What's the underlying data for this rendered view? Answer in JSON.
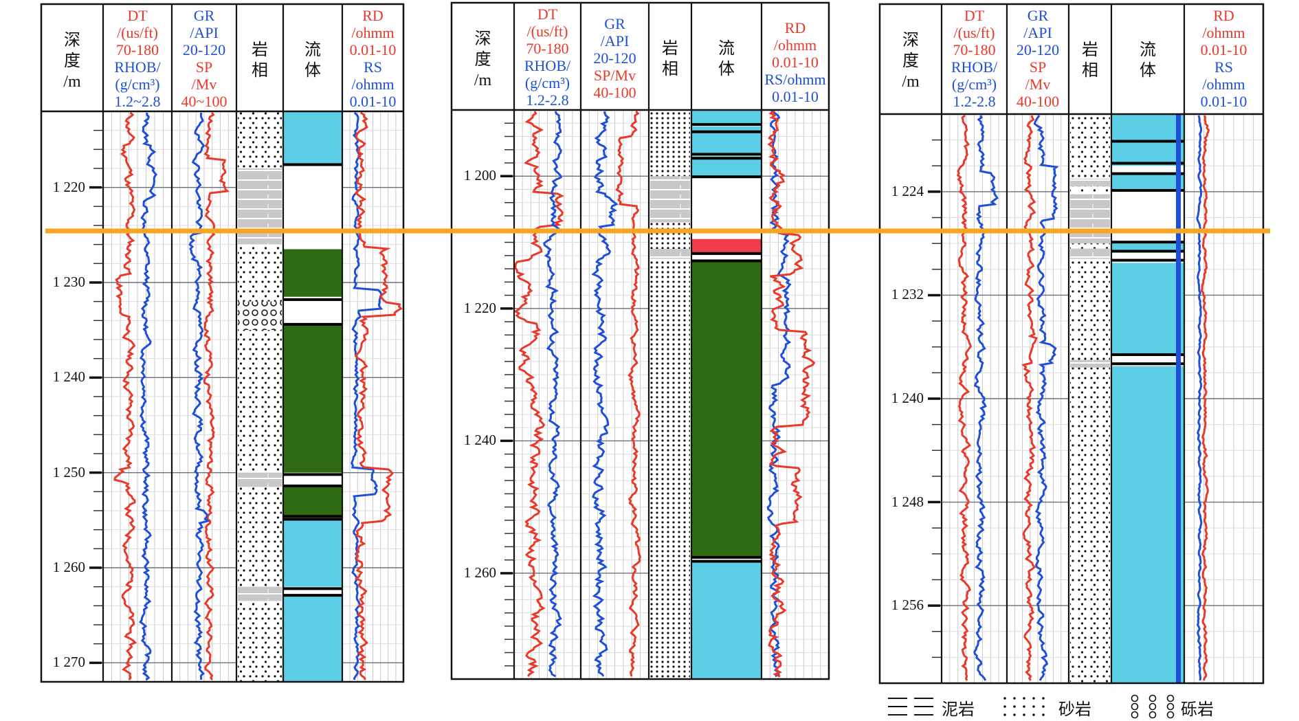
{
  "colors": {
    "red": "#e8392b",
    "blue": "#1f4fd6",
    "water": "#5ccfe6",
    "oil": "#2e6b14",
    "gas": "#f03a4a",
    "mud": "#c8c8c8",
    "marker": "#f5a623"
  },
  "panels": [
    {
      "id": "well-1",
      "columns": {
        "depth": [
          "深",
          "度",
          "/m"
        ],
        "dt": {
          "red": [
            "DT",
            "/(us/ft)",
            "70-180"
          ],
          "blue": [
            "RHOB/",
            "(g/cm³)",
            "1.2~2.8"
          ]
        },
        "gr": {
          "blue": [
            "GR",
            "/API",
            "20-120"
          ],
          "red": [
            "SP",
            "/Mv",
            "40~100"
          ]
        },
        "litho": [
          "岩",
          "相"
        ],
        "fluid": [
          "流",
          "体"
        ],
        "rd": {
          "red": [
            "RD",
            "/ohmm",
            "0.01-10"
          ],
          "blue": [
            "RS",
            "/ohmm",
            "0.01-10"
          ]
        }
      },
      "depth_range": [
        1212,
        1272
      ],
      "depth_labels": [
        "1 220",
        "1 230",
        "1 240",
        "1 250",
        "1 260",
        "1 270"
      ],
      "depth_ticks": [
        1220,
        1230,
        1240,
        1250,
        1260,
        1270
      ]
    },
    {
      "id": "well-2",
      "columns": {
        "depth": [
          "深",
          "度",
          "/m"
        ],
        "dt": {
          "red": [
            "DT",
            "/(us/ft)",
            "70-180"
          ],
          "blue": [
            "RHOB/",
            "(g/cm³)",
            "1.2-2.8"
          ]
        },
        "gr": {
          "blue": [
            "GR",
            "/API",
            "20-120"
          ],
          "red": [
            "SP/Mv",
            "40-100"
          ]
        },
        "litho": [
          "岩",
          "相"
        ],
        "fluid": [
          "流",
          "体"
        ],
        "rd": {
          "red": [
            "RD",
            "/ohmm",
            "0.01-10"
          ],
          "blue": [
            "RS/ohmm",
            "0.01-10"
          ]
        }
      },
      "depth_range": [
        1190,
        1276
      ],
      "depth_labels": [
        "1 200",
        "1 220",
        "1 240",
        "1 260"
      ],
      "depth_ticks": [
        1200,
        1220,
        1240,
        1260
      ]
    },
    {
      "id": "well-3",
      "columns": {
        "depth": [
          "深",
          "度",
          "/m"
        ],
        "dt": {
          "red": [
            "DT",
            "/(us/ft)",
            "70-180"
          ],
          "blue": [
            "RHOB/",
            "(g/cm³)",
            "1.2-2.8"
          ]
        },
        "gr": {
          "blue": [
            "GR",
            "/API",
            "20-120"
          ],
          "red": [
            "SP",
            "/Mv",
            "40-100"
          ]
        },
        "litho": [
          "岩",
          "相"
        ],
        "fluid": [
          "流",
          "体"
        ],
        "rd": {
          "red": [
            "RD",
            "/ohmm",
            "0.01-10"
          ],
          "blue": [
            "RS",
            "/ohmm",
            "0.01-10"
          ]
        }
      },
      "depth_range": [
        1218,
        1262
      ],
      "depth_labels": [
        "1 224",
        "1 232",
        "1 240",
        "1 248",
        "1 256"
      ],
      "depth_ticks": [
        1224,
        1232,
        1240,
        1248,
        1256
      ]
    }
  ],
  "legend": [
    {
      "symbol": "mud",
      "label": "泥岩"
    },
    {
      "symbol": "sand",
      "label": "砂岩"
    },
    {
      "symbol": "gravel",
      "label": "砾岩"
    }
  ],
  "chart_data": {
    "type": "line",
    "marker_depths_m": [
      1226.5,
      1209.5,
      1227.5
    ],
    "wells": [
      {
        "lithology": [
          {
            "from": 1212,
            "to": 1218,
            "type": "sand"
          },
          {
            "from": 1218,
            "to": 1226,
            "type": "mud"
          },
          {
            "from": 1226,
            "to": 1232,
            "type": "sand"
          },
          {
            "from": 1232,
            "to": 1235,
            "type": "gravel"
          },
          {
            "from": 1235,
            "to": 1250,
            "type": "sand"
          },
          {
            "from": 1250,
            "to": 1251.5,
            "type": "mud"
          },
          {
            "from": 1251.5,
            "to": 1262,
            "type": "sand"
          },
          {
            "from": 1262,
            "to": 1263.5,
            "type": "mud"
          },
          {
            "from": 1263.5,
            "to": 1272,
            "type": "sand"
          }
        ],
        "fluid": [
          {
            "from": 1212,
            "to": 1217.5,
            "type": "water"
          },
          {
            "from": 1218,
            "to": 1226.5,
            "type": "none"
          },
          {
            "from": 1226.5,
            "to": 1231.5,
            "type": "oil"
          },
          {
            "from": 1232,
            "to": 1234.5,
            "type": "none"
          },
          {
            "from": 1234.5,
            "to": 1250,
            "type": "oil"
          },
          {
            "from": 1250.5,
            "to": 1251.5,
            "type": "none"
          },
          {
            "from": 1251.5,
            "to": 1254.5,
            "type": "oil"
          },
          {
            "from": 1255,
            "to": 1262,
            "type": "water"
          },
          {
            "from": 1262.5,
            "to": 1263,
            "type": "none"
          },
          {
            "from": 1263,
            "to": 1272,
            "type": "water"
          }
        ],
        "fluid_lines": [
          1217.6,
          1231.8,
          1234.4,
          1250.2,
          1251.4,
          1254.6,
          1254.9,
          1262.2,
          1262.9
        ]
      },
      {
        "lithology": [
          {
            "from": 1190,
            "to": 1200,
            "type": "sand"
          },
          {
            "from": 1200,
            "to": 1207,
            "type": "mud"
          },
          {
            "from": 1207,
            "to": 1211,
            "type": "sand"
          },
          {
            "from": 1211,
            "to": 1212.5,
            "type": "mud"
          },
          {
            "from": 1212.5,
            "to": 1276,
            "type": "sand"
          }
        ],
        "fluid": [
          {
            "from": 1190,
            "to": 1192,
            "type": "water"
          },
          {
            "from": 1192.5,
            "to": 1193.5,
            "type": "water"
          },
          {
            "from": 1193.5,
            "to": 1196.5,
            "type": "water"
          },
          {
            "from": 1197,
            "to": 1200,
            "type": "water"
          },
          {
            "from": 1200,
            "to": 1209.5,
            "type": "none"
          },
          {
            "from": 1209.5,
            "to": 1211.5,
            "type": "gas"
          },
          {
            "from": 1212,
            "to": 1213,
            "type": "none"
          },
          {
            "from": 1213,
            "to": 1257.5,
            "type": "oil"
          },
          {
            "from": 1258,
            "to": 1276,
            "type": "water"
          }
        ],
        "fluid_lines": [
          1192.2,
          1193.3,
          1196.7,
          1197.3,
          1200.1,
          1211.7,
          1212.8,
          1257.6,
          1258.2
        ]
      },
      {
        "lithology": [
          {
            "from": 1218,
            "to": 1223,
            "type": "sand"
          },
          {
            "from": 1223,
            "to": 1223.6,
            "type": "mud"
          },
          {
            "from": 1223.6,
            "to": 1224.2,
            "type": "sand"
          },
          {
            "from": 1224.2,
            "to": 1228,
            "type": "mud"
          },
          {
            "from": 1228,
            "to": 1228.4,
            "type": "sand"
          },
          {
            "from": 1228.4,
            "to": 1229.2,
            "type": "mud"
          },
          {
            "from": 1229.2,
            "to": 1237,
            "type": "sand"
          },
          {
            "from": 1237,
            "to": 1237.6,
            "type": "mud"
          },
          {
            "from": 1237.6,
            "to": 1262,
            "type": "sand"
          }
        ],
        "fluid": [
          {
            "from": 1218,
            "to": 1220,
            "type": "water"
          },
          {
            "from": 1220.2,
            "to": 1222,
            "type": "water"
          },
          {
            "from": 1222,
            "to": 1222.6,
            "type": "none"
          },
          {
            "from": 1222.6,
            "to": 1223.8,
            "type": "water"
          },
          {
            "from": 1223.8,
            "to": 1227.8,
            "type": "none"
          },
          {
            "from": 1228,
            "to": 1228.5,
            "type": "water"
          },
          {
            "from": 1228.5,
            "to": 1229.5,
            "type": "none"
          },
          {
            "from": 1229.5,
            "to": 1236.5,
            "type": "water"
          },
          {
            "from": 1236.5,
            "to": 1237.5,
            "type": "none"
          },
          {
            "from": 1237.5,
            "to": 1262,
            "type": "water"
          }
        ],
        "fluid_lines": [
          1220.1,
          1221.8,
          1222.6,
          1223.9,
          1227.9,
          1228.6,
          1229.3,
          1236.6,
          1237.3
        ]
      }
    ]
  }
}
